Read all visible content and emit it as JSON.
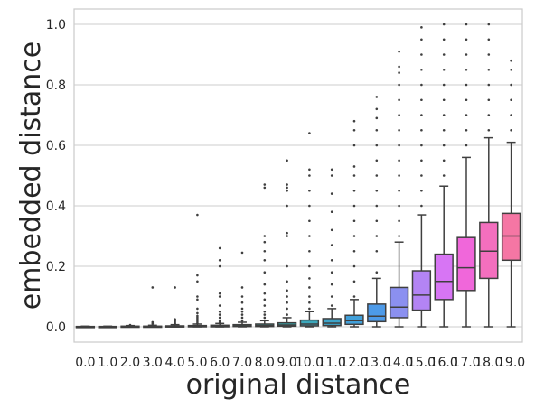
{
  "chart_data": {
    "type": "box",
    "xlabel": "original distance",
    "ylabel": "embedded distance",
    "ylim": [
      -0.05,
      1.05
    ],
    "yticks": [
      "0.0",
      "0.2",
      "0.4",
      "0.6",
      "0.8",
      "1.0"
    ],
    "grid": "horizontal",
    "categories": [
      "0.0",
      "1.0",
      "2.0",
      "3.0",
      "4.0",
      "5.0",
      "6.0",
      "7.0",
      "8.0",
      "9.0",
      "10.0",
      "11.0",
      "12.0",
      "13.0",
      "14.0",
      "15.0",
      "16.0",
      "17.0",
      "18.0",
      "19.0"
    ],
    "boxes": [
      {
        "category": "0.0",
        "color": "#f77189",
        "q1": 0.0,
        "median": 0.0,
        "q3": 0.001,
        "whisker_low": 0.0,
        "whisker_high": 0.002,
        "outliers": []
      },
      {
        "category": "1.0",
        "color": "#f67b3e",
        "q1": 0.0,
        "median": 0.0,
        "q3": 0.001,
        "whisker_low": 0.0,
        "whisker_high": 0.002,
        "outliers": []
      },
      {
        "category": "2.0",
        "color": "#d58c32",
        "q1": 0.0,
        "median": 0.001,
        "q3": 0.002,
        "whisker_low": 0.0,
        "whisker_high": 0.004,
        "outliers": [
          0.006
        ]
      },
      {
        "category": "3.0",
        "color": "#bb9832",
        "q1": 0.0,
        "median": 0.001,
        "q3": 0.002,
        "whisker_low": 0.0,
        "whisker_high": 0.005,
        "outliers": [
          0.01,
          0.015,
          0.13
        ]
      },
      {
        "category": "4.0",
        "color": "#a4a031",
        "q1": 0.0,
        "median": 0.001,
        "q3": 0.003,
        "whisker_low": 0.0,
        "whisker_high": 0.007,
        "outliers": [
          0.01,
          0.015,
          0.02,
          0.025,
          0.13
        ]
      },
      {
        "category": "5.0",
        "color": "#88a731",
        "q1": 0.0,
        "median": 0.002,
        "q3": 0.004,
        "whisker_low": 0.0,
        "whisker_high": 0.009,
        "outliers": [
          0.012,
          0.018,
          0.024,
          0.03,
          0.036,
          0.045,
          0.06,
          0.09,
          0.1,
          0.15,
          0.17,
          0.37
        ]
      },
      {
        "category": "6.0",
        "color": "#50b131",
        "q1": 0.0,
        "median": 0.002,
        "q3": 0.005,
        "whisker_low": 0.0,
        "whisker_high": 0.011,
        "outliers": [
          0.015,
          0.02,
          0.03,
          0.04,
          0.05,
          0.07,
          0.1,
          0.11,
          0.2,
          0.22,
          0.26
        ]
      },
      {
        "category": "7.0",
        "color": "#34ae91",
        "q1": 0.001,
        "median": 0.003,
        "q3": 0.007,
        "whisker_low": 0.0,
        "whisker_high": 0.015,
        "outliers": [
          0.02,
          0.03,
          0.04,
          0.05,
          0.06,
          0.08,
          0.1,
          0.13,
          0.245
        ]
      },
      {
        "category": "8.0",
        "color": "#36ada4",
        "q1": 0.001,
        "median": 0.004,
        "q3": 0.009,
        "whisker_low": 0.0,
        "whisker_high": 0.02,
        "outliers": [
          0.03,
          0.04,
          0.05,
          0.07,
          0.09,
          0.11,
          0.14,
          0.18,
          0.22,
          0.25,
          0.28,
          0.3,
          0.46,
          0.47
        ]
      },
      {
        "category": "9.0",
        "color": "#38aab0",
        "q1": 0.002,
        "median": 0.006,
        "q3": 0.013,
        "whisker_low": 0.0,
        "whisker_high": 0.03,
        "outliers": [
          0.04,
          0.06,
          0.08,
          0.1,
          0.12,
          0.15,
          0.2,
          0.3,
          0.31,
          0.4,
          0.45,
          0.46,
          0.47,
          0.55
        ]
      },
      {
        "category": "10.0",
        "color": "#3ba7bb",
        "q1": 0.003,
        "median": 0.009,
        "q3": 0.022,
        "whisker_low": 0.0,
        "whisker_high": 0.05,
        "outliers": [
          0.06,
          0.08,
          0.1,
          0.13,
          0.16,
          0.2,
          0.25,
          0.3,
          0.35,
          0.4,
          0.45,
          0.5,
          0.52,
          0.64
        ]
      },
      {
        "category": "11.0",
        "color": "#3da4c9",
        "q1": 0.004,
        "median": 0.012,
        "q3": 0.027,
        "whisker_low": 0.0,
        "whisker_high": 0.06,
        "outliers": [
          0.07,
          0.1,
          0.14,
          0.18,
          0.22,
          0.27,
          0.32,
          0.38,
          0.44,
          0.5,
          0.52
        ]
      },
      {
        "category": "12.0",
        "color": "#41a0da",
        "q1": 0.008,
        "median": 0.02,
        "q3": 0.038,
        "whisker_low": 0.0,
        "whisker_high": 0.09,
        "outliers": [
          0.1,
          0.15,
          0.2,
          0.25,
          0.3,
          0.35,
          0.4,
          0.45,
          0.5,
          0.53,
          0.6,
          0.65,
          0.68
        ]
      },
      {
        "category": "13.0",
        "color": "#4d9ae8",
        "q1": 0.017,
        "median": 0.035,
        "q3": 0.075,
        "whisker_low": 0.0,
        "whisker_high": 0.16,
        "outliers": [
          0.18,
          0.25,
          0.3,
          0.35,
          0.4,
          0.45,
          0.5,
          0.55,
          0.6,
          0.65,
          0.69,
          0.72,
          0.76
        ]
      },
      {
        "category": "14.0",
        "color": "#8b90f0",
        "q1": 0.03,
        "median": 0.065,
        "q3": 0.13,
        "whisker_low": 0.0,
        "whisker_high": 0.28,
        "outliers": [
          0.3,
          0.35,
          0.4,
          0.45,
          0.5,
          0.55,
          0.6,
          0.65,
          0.7,
          0.75,
          0.8,
          0.84,
          0.86,
          0.91
        ]
      },
      {
        "category": "15.0",
        "color": "#b384f4",
        "q1": 0.055,
        "median": 0.105,
        "q3": 0.185,
        "whisker_low": 0.0,
        "whisker_high": 0.37,
        "outliers": [
          0.4,
          0.45,
          0.5,
          0.55,
          0.6,
          0.65,
          0.7,
          0.75,
          0.8,
          0.85,
          0.9,
          0.95,
          0.99
        ]
      },
      {
        "category": "16.0",
        "color": "#d775f4",
        "q1": 0.09,
        "median": 0.15,
        "q3": 0.24,
        "whisker_low": 0.0,
        "whisker_high": 0.465,
        "outliers": [
          0.5,
          0.55,
          0.6,
          0.65,
          0.7,
          0.75,
          0.8,
          0.85,
          0.9,
          0.95,
          1.0
        ]
      },
      {
        "category": "17.0",
        "color": "#f067da",
        "q1": 0.12,
        "median": 0.195,
        "q3": 0.295,
        "whisker_low": 0.0,
        "whisker_high": 0.56,
        "outliers": [
          0.6,
          0.65,
          0.7,
          0.75,
          0.8,
          0.85,
          0.9,
          0.95,
          1.0
        ]
      },
      {
        "category": "18.0",
        "color": "#f36fbe",
        "q1": 0.16,
        "median": 0.25,
        "q3": 0.345,
        "whisker_low": 0.0,
        "whisker_high": 0.625,
        "outliers": [
          0.65,
          0.7,
          0.75,
          0.8,
          0.85,
          0.9,
          0.95,
          1.0
        ]
      },
      {
        "category": "19.0",
        "color": "#f576a4",
        "q1": 0.22,
        "median": 0.3,
        "q3": 0.375,
        "whisker_low": 0.0,
        "whisker_high": 0.61,
        "outliers": [
          0.65,
          0.7,
          0.75,
          0.8,
          0.85,
          0.88
        ]
      }
    ]
  }
}
